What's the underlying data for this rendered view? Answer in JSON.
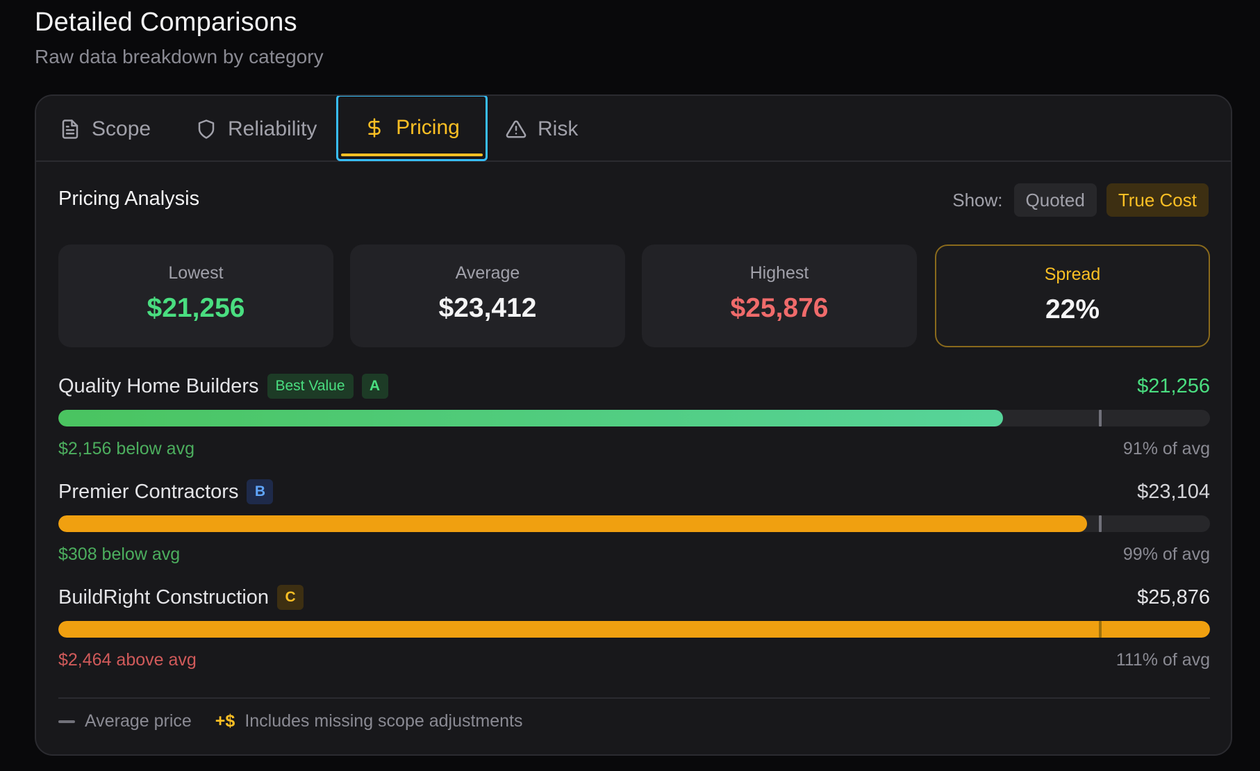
{
  "header": {
    "title": "Detailed Comparisons",
    "subtitle": "Raw data breakdown by category"
  },
  "tabs": [
    {
      "label": "Scope",
      "icon": "document-icon"
    },
    {
      "label": "Reliability",
      "icon": "shield-icon"
    },
    {
      "label": "Pricing",
      "icon": "dollar-icon",
      "active": true
    },
    {
      "label": "Risk",
      "icon": "warning-triangle-icon"
    }
  ],
  "pricing": {
    "title": "Pricing Analysis",
    "show_label": "Show:",
    "toggle": {
      "quoted": "Quoted",
      "true_cost": "True Cost",
      "selected": "True Cost"
    },
    "stats": {
      "lowest": {
        "label": "Lowest",
        "value": "$21,256"
      },
      "average": {
        "label": "Average",
        "value": "$23,412"
      },
      "highest": {
        "label": "Highest",
        "value": "$25,876"
      },
      "spread": {
        "label": "Spread",
        "value": "22%"
      }
    },
    "contractors": [
      {
        "name": "Quality Home Builders",
        "badge": "Best Value",
        "grade": "A",
        "price": "$21,256",
        "diff": "$2,156 below avg",
        "pct": "91% of avg",
        "bar_percent": 82
      },
      {
        "name": "Premier Contractors",
        "badge": "",
        "grade": "B",
        "price": "$23,104",
        "diff": "$308 below avg",
        "pct": "99% of avg",
        "bar_percent": 89.3
      },
      {
        "name": "BuildRight Construction",
        "badge": "",
        "grade": "C",
        "price": "$25,876",
        "diff": "$2,464 above avg",
        "pct": "111% of avg",
        "bar_percent": 100
      }
    ],
    "average_marker_percent": 90.5,
    "legend": {
      "average": "Average price",
      "adjust_symbol": "+$",
      "adjust": "Includes missing scope adjustments"
    }
  },
  "colors": {
    "accent": "#fbbf24",
    "green": "#4ade80",
    "red": "#f06b6b",
    "orange": "#f0a010",
    "focus": "#38bdf8"
  }
}
